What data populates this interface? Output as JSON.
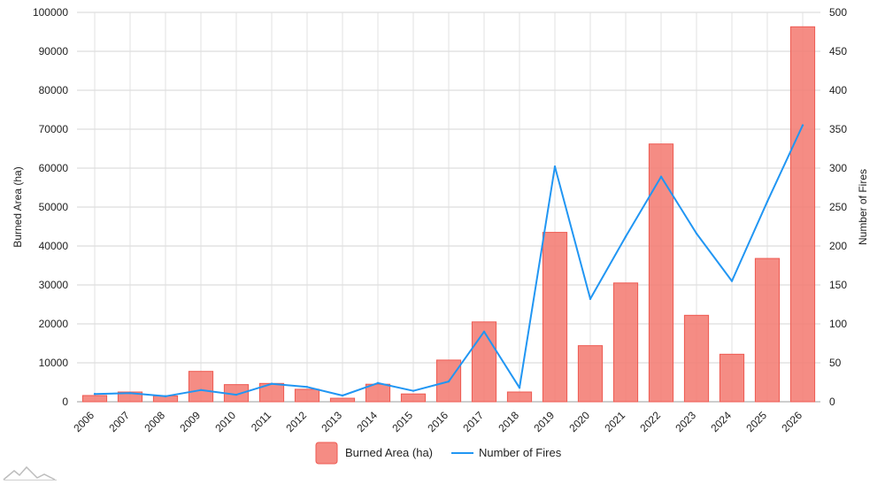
{
  "chart_data": {
    "type": "bar",
    "categories": [
      "2006",
      "2007",
      "2008",
      "2009",
      "2010",
      "2011",
      "2012",
      "2013",
      "2014",
      "2015",
      "2016",
      "2017",
      "2018",
      "2019",
      "2020",
      "2021",
      "2022",
      "2023",
      "2024",
      "2025",
      "2026"
    ],
    "series": [
      {
        "name": "Burned Area (ha)",
        "type": "bar",
        "axis": "left",
        "color": "#f47c73",
        "values": [
          1600,
          2500,
          1500,
          7800,
          4400,
          4700,
          3200,
          900,
          4500,
          2000,
          10700,
          20500,
          2500,
          43500,
          14400,
          30500,
          66200,
          22200,
          12200,
          36800,
          96300
        ]
      },
      {
        "name": "Number of Fires",
        "type": "line",
        "axis": "right",
        "color": "#2196f3",
        "values": [
          10,
          11,
          7,
          15,
          9,
          23,
          19,
          8,
          24,
          14,
          26,
          90,
          18,
          302,
          132,
          212,
          289,
          216,
          155,
          257,
          355
        ]
      }
    ],
    "ylabel": "Burned Area (ha)",
    "y2label": "Number of Fires",
    "ylim": [
      0,
      100000
    ],
    "y2lim": [
      0,
      500
    ],
    "yticks": [
      "0",
      "10000",
      "20000",
      "30000",
      "40000",
      "50000",
      "60000",
      "70000",
      "80000",
      "90000",
      "100000"
    ],
    "y2ticks": [
      "0",
      "50",
      "100",
      "150",
      "200",
      "250",
      "300",
      "350",
      "400",
      "450",
      "500"
    ],
    "grid": true,
    "legend_position": "bottom-center"
  },
  "watermark": {
    "icon": "mountains-logo-icon"
  }
}
